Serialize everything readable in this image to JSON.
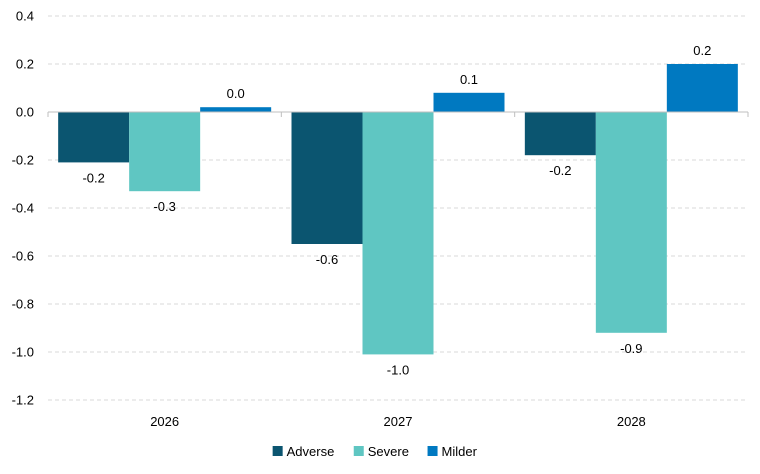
{
  "chart_data": {
    "type": "bar",
    "categories": [
      "2026",
      "2027",
      "2028"
    ],
    "series": [
      {
        "name": "Adverse",
        "color": "#0b5570",
        "values": [
          -0.21,
          -0.55,
          -0.18
        ],
        "labels": [
          "-0.2",
          "-0.6",
          "-0.2"
        ]
      },
      {
        "name": "Severe",
        "color": "#5fc6c2",
        "values": [
          -0.33,
          -1.01,
          -0.92
        ],
        "labels": [
          "-0.3",
          "-1.0",
          "-0.9"
        ]
      },
      {
        "name": "Milder",
        "color": "#0079c1",
        "values": [
          0.02,
          0.08,
          0.2
        ],
        "labels": [
          "0.0",
          "0.1",
          "0.2"
        ]
      }
    ],
    "ylim": [
      -1.2,
      0.4
    ],
    "yticks": [
      0.4,
      0.2,
      0.0,
      -0.2,
      -0.4,
      -0.6,
      -0.8,
      -1.0,
      -1.2
    ],
    "ytick_labels": [
      "0.4",
      "0.2",
      "0.0",
      "-0.2",
      "-0.4",
      "-0.6",
      "-0.8",
      "-1.0",
      "-1.2"
    ],
    "grid": true,
    "legend_position": "bottom-center"
  }
}
